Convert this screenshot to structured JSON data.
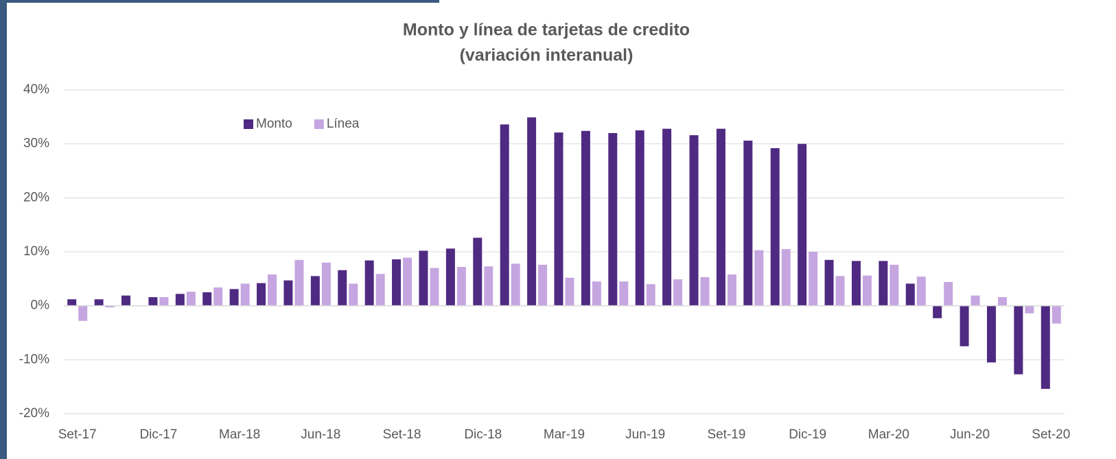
{
  "chart_data": {
    "type": "bar",
    "title": "Monto y línea de tarjetas de credito",
    "subtitle": "(variación interanual)",
    "categories": [
      "Set-17",
      null,
      null,
      "Dic-17",
      null,
      null,
      "Mar-18",
      null,
      null,
      "Jun-18",
      null,
      null,
      "Set-18",
      null,
      null,
      "Dic-18",
      null,
      null,
      "Mar-19",
      null,
      null,
      "Jun-19",
      null,
      null,
      "Set-19",
      null,
      null,
      "Dic-19",
      null,
      null,
      "Mar-20",
      null,
      null,
      "Jun-20",
      null,
      null,
      "Set-20"
    ],
    "series": [
      {
        "name": "Monto",
        "color": "#4f2a82",
        "values": [
          1.2,
          1.2,
          1.9,
          1.6,
          2.2,
          2.5,
          3.1,
          4.2,
          4.7,
          5.5,
          6.6,
          8.4,
          8.6,
          10.2,
          10.6,
          12.6,
          33.6,
          34.9,
          32.1,
          32.4,
          32.0,
          32.5,
          32.8,
          31.6,
          32.8,
          30.6,
          29.2,
          30.0,
          8.5,
          8.3,
          8.3,
          4.1,
          -2.3,
          -7.5,
          -10.5,
          -12.7,
          -15.4
        ]
      },
      {
        "name": "Línea",
        "color": "#c5a6e0",
        "values": [
          -2.8,
          -0.3,
          -0.1,
          1.6,
          2.6,
          3.4,
          4.1,
          5.8,
          8.5,
          8.0,
          4.1,
          5.9,
          8.9,
          7.0,
          7.2,
          7.3,
          7.8,
          7.6,
          5.2,
          4.5,
          4.5,
          4.0,
          4.9,
          5.3,
          5.8,
          10.3,
          10.5,
          10.0,
          5.5,
          5.6,
          7.6,
          5.4,
          4.4,
          1.9,
          1.6,
          -1.4,
          -3.3
        ]
      }
    ],
    "ylim": [
      -20,
      40
    ],
    "yticks": [
      {
        "value": -20,
        "label": "-20%"
      },
      {
        "value": -10,
        "label": "-10%"
      },
      {
        "value": 0,
        "label": "0%"
      },
      {
        "value": 10,
        "label": "10%"
      },
      {
        "value": 20,
        "label": "20%"
      },
      {
        "value": 30,
        "label": "30%"
      },
      {
        "value": 40,
        "label": "40%"
      }
    ],
    "grid": true,
    "legend": "top-left"
  }
}
